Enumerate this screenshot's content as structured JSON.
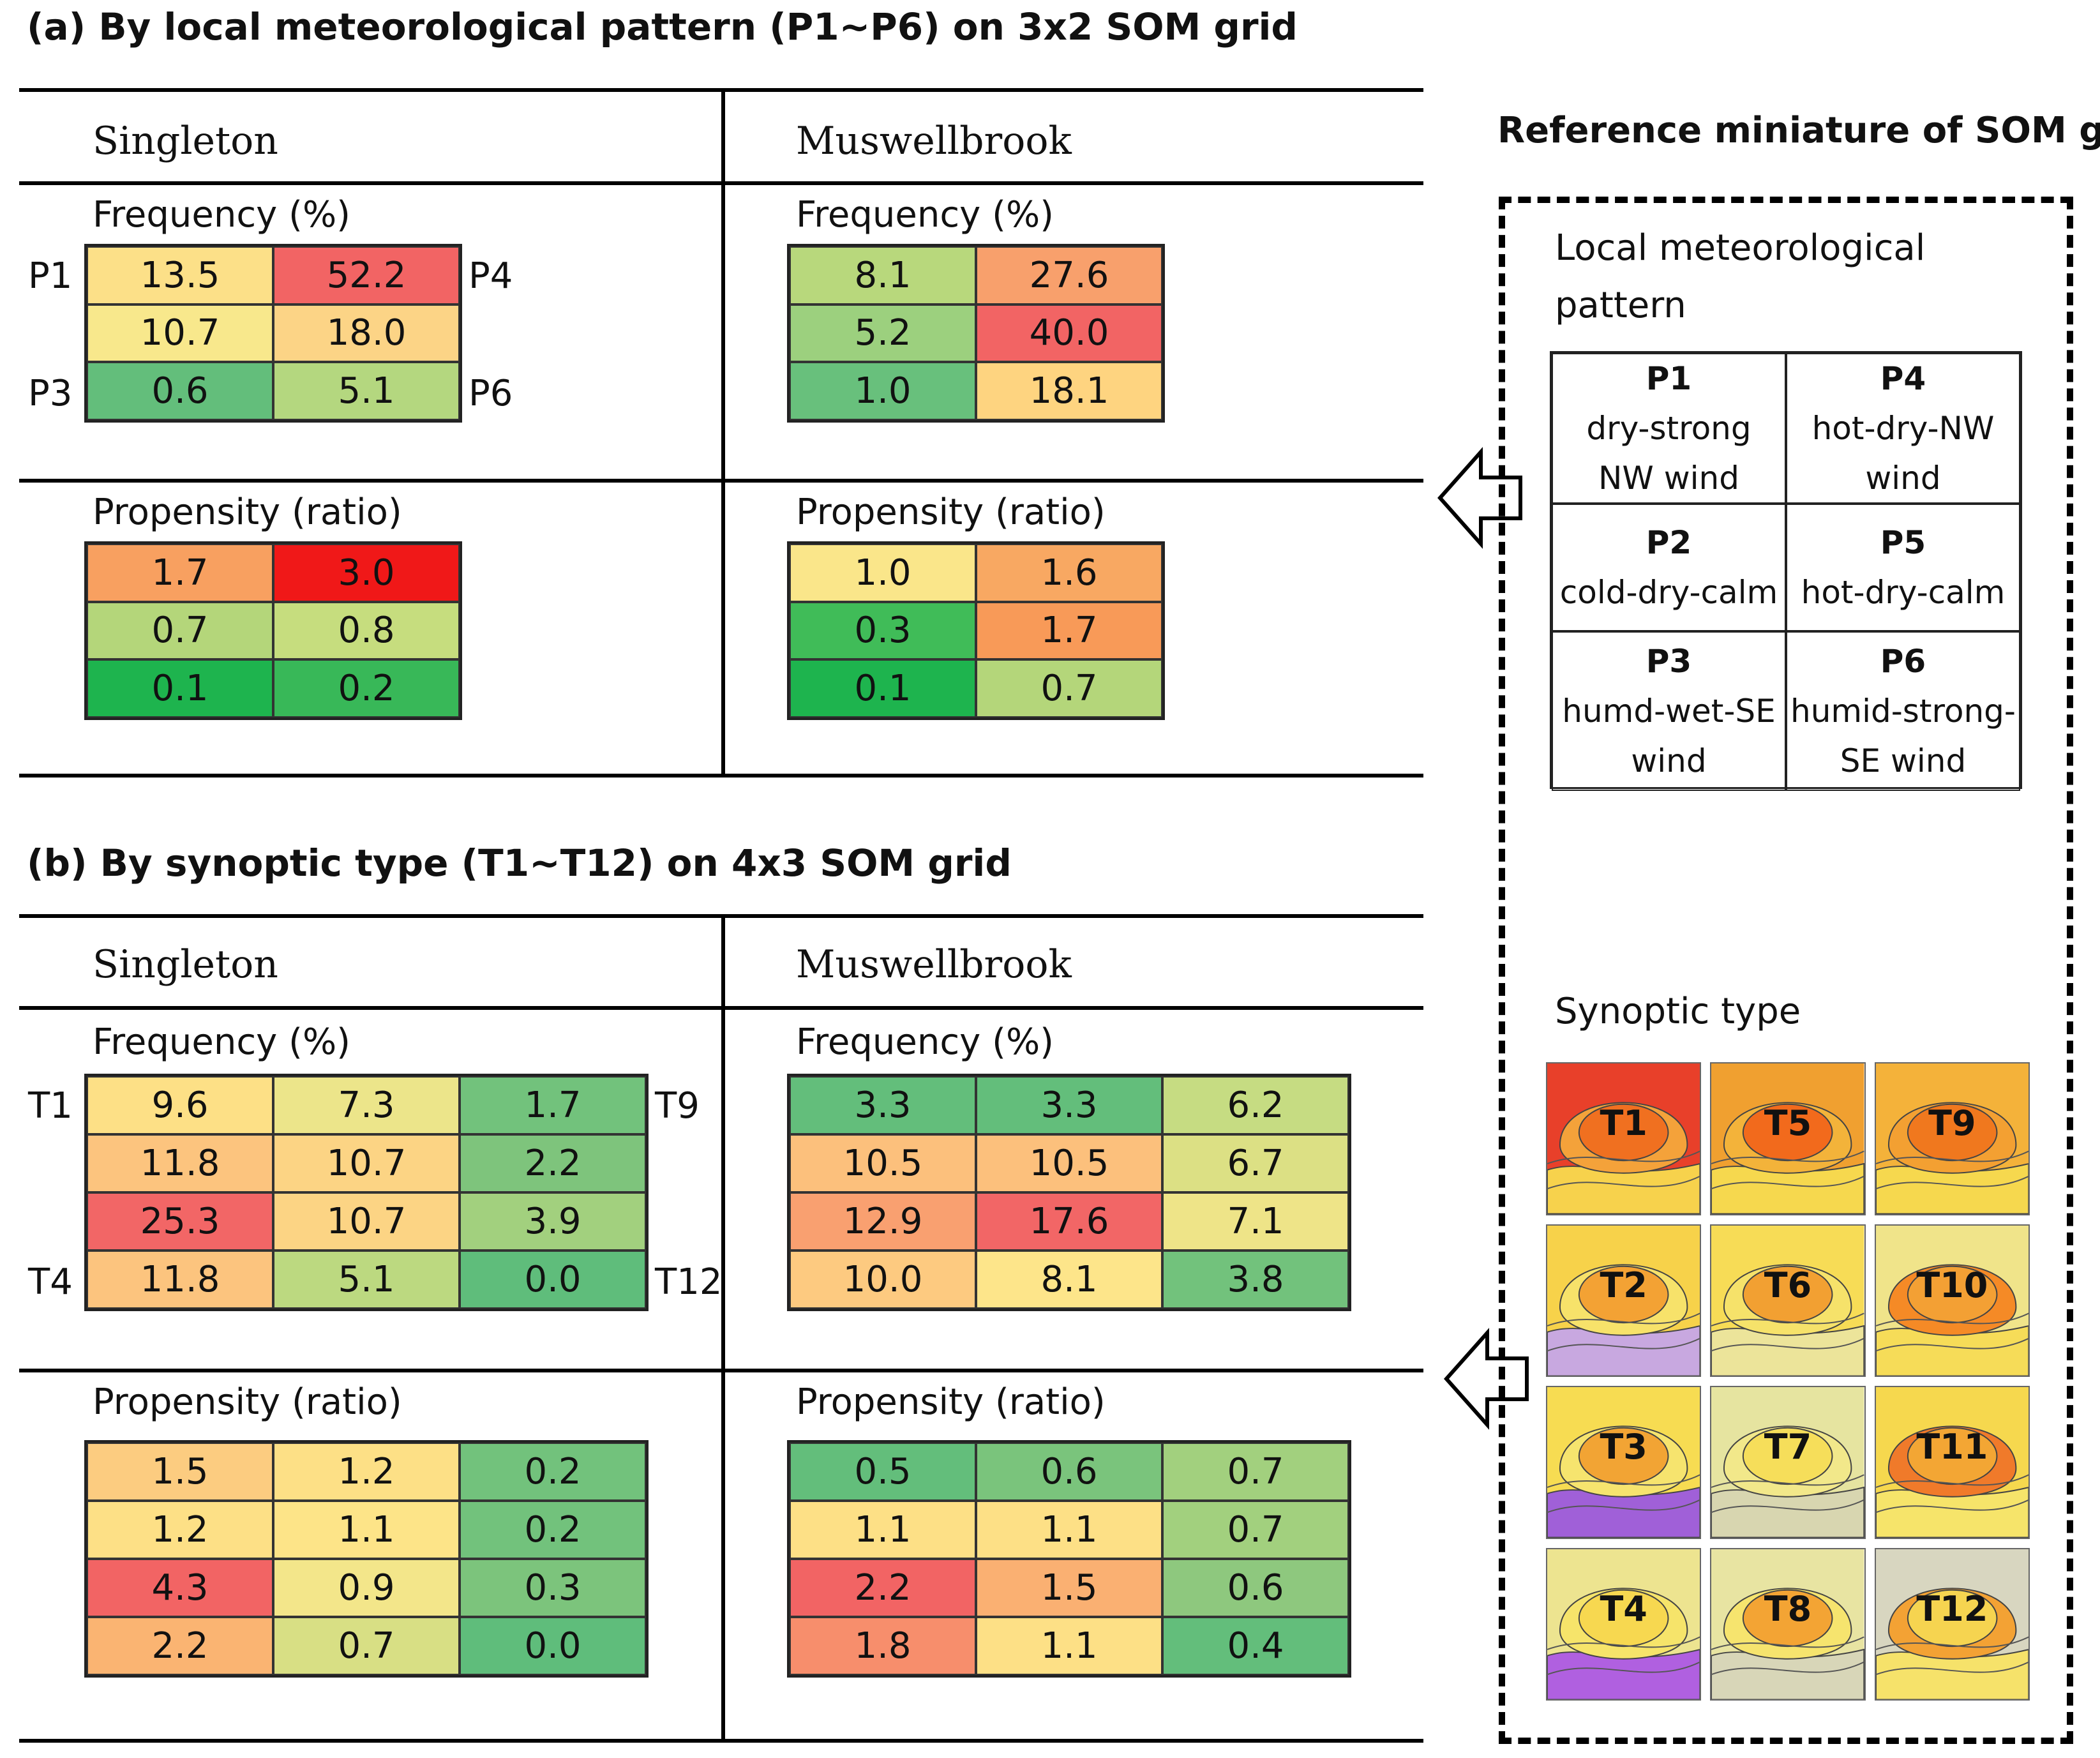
{
  "section_a": {
    "title": "(a) By local meteorological pattern (P1~P6) on 3x2 SOM grid",
    "sites": [
      "Singleton",
      "Muswellbrook"
    ],
    "frequency_label": "Frequency (%)",
    "propensity_label": "Propensity (ratio)",
    "row_labels_left": [
      "P1",
      "",
      "P3"
    ],
    "row_labels_right": [
      "P4",
      "",
      "P6"
    ]
  },
  "section_b": {
    "title": "(b) By synoptic type (T1~T12) on 4x3 SOM grid",
    "sites": [
      "Singleton",
      "Muswellbrook"
    ],
    "frequency_label": "Frequency (%)",
    "propensity_label": "Propensity (ratio)",
    "row_labels_left": [
      "T1",
      "",
      "",
      "T4"
    ],
    "row_labels_right": [
      "T9",
      "",
      "",
      "T12"
    ]
  },
  "reference": {
    "title": "Reference miniature of SOM grid",
    "local_label_line1": "Local meteorological",
    "local_label_line2": "pattern",
    "patterns": [
      {
        "id": "P1",
        "l1": "dry-strong",
        "l2": "NW wind"
      },
      {
        "id": "P4",
        "l1": "hot-dry-NW",
        "l2": "wind"
      },
      {
        "id": "P2",
        "l1": "cold-dry-calm",
        "l2": ""
      },
      {
        "id": "P5",
        "l1": "hot-dry-calm",
        "l2": ""
      },
      {
        "id": "P3",
        "l1": "humd-wet-SE",
        "l2": "wind"
      },
      {
        "id": "P6",
        "l1": "humid-strong-",
        "l2": "SE wind"
      }
    ],
    "synoptic_label": "Synoptic type",
    "synoptic_types": [
      {
        "id": "T1",
        "colors": [
          "#e8402a",
          "#f07020",
          "#f4a23a",
          "#f7d24c"
        ]
      },
      {
        "id": "T5",
        "colors": [
          "#f0a030",
          "#f26a1c",
          "#f3b33a",
          "#f6d84e"
        ]
      },
      {
        "id": "T9",
        "colors": [
          "#f4b23a",
          "#f0781e",
          "#f3a032",
          "#f6d84e"
        ]
      },
      {
        "id": "T2",
        "colors": [
          "#f7d24a",
          "#f3a234",
          "#f7e26a",
          "#c8a8e0"
        ]
      },
      {
        "id": "T6",
        "colors": [
          "#f7dc56",
          "#f2a032",
          "#f6e26a",
          "#ece49a"
        ]
      },
      {
        "id": "T10",
        "colors": [
          "#f0e48a",
          "#f3a034",
          "#f58a26",
          "#f6dc58"
        ]
      },
      {
        "id": "T3",
        "colors": [
          "#f7dc52",
          "#f2a434",
          "#f6e46e",
          "#a060d8"
        ]
      },
      {
        "id": "T7",
        "colors": [
          "#e6e4a0",
          "#f6de5a",
          "#f2e88a",
          "#d8d6b0"
        ]
      },
      {
        "id": "T11",
        "colors": [
          "#f6d84e",
          "#f3a634",
          "#f07a2a",
          "#f6e46a"
        ]
      },
      {
        "id": "T4",
        "colors": [
          "#ede490",
          "#f7d850",
          "#f6e46a",
          "#b060e0"
        ]
      },
      {
        "id": "T8",
        "colors": [
          "#e8e4a2",
          "#f3a434",
          "#f6e46e",
          "#d8d6b8"
        ]
      },
      {
        "id": "T12",
        "colors": [
          "#d8d6c0",
          "#f6d450",
          "#f3a234",
          "#f6e26a"
        ]
      }
    ]
  },
  "chart_data": [
    {
      "type": "heatmap",
      "title": "(a) By local meteorological pattern (P1~P6) on 3x2 SOM grid",
      "site": "Singleton",
      "metric": "Frequency (%)",
      "values": [
        [
          13.5,
          52.2
        ],
        [
          10.7,
          18.0
        ],
        [
          0.6,
          5.1
        ]
      ],
      "colors": [
        [
          "#fce088",
          "#f26464"
        ],
        [
          "#f8e88c",
          "#fcd486"
        ],
        [
          "#63be7b",
          "#b4d77f"
        ]
      ]
    },
    {
      "type": "heatmap",
      "site": "Muswellbrook",
      "metric": "Frequency (%)",
      "values": [
        [
          8.1,
          27.6
        ],
        [
          5.2,
          40.0
        ],
        [
          1.0,
          18.1
        ]
      ],
      "colors": [
        [
          "#b8d87c",
          "#f8a06c"
        ],
        [
          "#9cd07e",
          "#f26464"
        ],
        [
          "#68c07c",
          "#fed480"
        ]
      ]
    },
    {
      "type": "heatmap",
      "site": "Singleton",
      "metric": "Propensity (ratio)",
      "values": [
        [
          1.7,
          3.0
        ],
        [
          0.7,
          0.8
        ],
        [
          0.1,
          0.2
        ]
      ],
      "colors": [
        [
          "#f8a060",
          "#f01818"
        ],
        [
          "#b4d67a",
          "#c6dd7e"
        ],
        [
          "#1eb44e",
          "#38b858"
        ]
      ]
    },
    {
      "type": "heatmap",
      "site": "Muswellbrook",
      "metric": "Propensity (ratio)",
      "values": [
        [
          1.0,
          1.6
        ],
        [
          0.3,
          1.7
        ],
        [
          0.1,
          0.7
        ]
      ],
      "colors": [
        [
          "#fae68a",
          "#f8a862"
        ],
        [
          "#40bc58",
          "#f89a58"
        ],
        [
          "#1eb44e",
          "#b4d67a"
        ]
      ]
    },
    {
      "type": "heatmap",
      "title": "(b) By synoptic type (T1~T12) on 4x3 SOM grid",
      "site": "Singleton",
      "metric": "Frequency (%)",
      "values": [
        [
          9.6,
          7.3,
          1.7
        ],
        [
          11.8,
          10.7,
          2.2
        ],
        [
          25.3,
          10.7,
          3.9
        ],
        [
          11.8,
          5.1,
          0.0
        ]
      ],
      "colors": [
        [
          "#fde086",
          "#ece58a",
          "#72c27c"
        ],
        [
          "#fcc47e",
          "#fcd484",
          "#7ec47c"
        ],
        [
          "#f26666",
          "#fcd484",
          "#a2d07e"
        ],
        [
          "#fcc47e",
          "#bcd980",
          "#5fbd7b"
        ]
      ]
    },
    {
      "type": "heatmap",
      "site": "Muswellbrook",
      "metric": "Frequency (%)",
      "values": [
        [
          3.3,
          3.3,
          6.2
        ],
        [
          10.5,
          10.5,
          6.7
        ],
        [
          12.9,
          17.6,
          7.1
        ],
        [
          10.0,
          8.1,
          3.8
        ]
      ],
      "colors": [
        [
          "#63be7b",
          "#63be7b",
          "#c6dc82"
        ],
        [
          "#fcc07c",
          "#fcc07c",
          "#dce084"
        ],
        [
          "#f9a070",
          "#f26666",
          "#eee488"
        ],
        [
          "#fdca80",
          "#fde58a",
          "#72c27c"
        ]
      ]
    },
    {
      "type": "heatmap",
      "site": "Singleton",
      "metric": "Propensity (ratio)",
      "values": [
        [
          1.5,
          1.2,
          0.2
        ],
        [
          1.2,
          1.1,
          0.2
        ],
        [
          4.3,
          0.9,
          0.3
        ],
        [
          2.2,
          0.7,
          0.0
        ]
      ],
      "colors": [
        [
          "#fccc80",
          "#fde086",
          "#72c27c"
        ],
        [
          "#fde086",
          "#fde488",
          "#72c27c"
        ],
        [
          "#f26464",
          "#f3e68a",
          "#7cc47c"
        ],
        [
          "#fab472",
          "#d8df84",
          "#5fbd7b"
        ]
      ]
    },
    {
      "type": "heatmap",
      "site": "Muswellbrook",
      "metric": "Propensity (ratio)",
      "values": [
        [
          0.5,
          0.6,
          0.7
        ],
        [
          1.1,
          1.1,
          0.7
        ],
        [
          2.2,
          1.5,
          0.6
        ],
        [
          1.8,
          1.1,
          0.4
        ]
      ],
      "colors": [
        [
          "#63be7b",
          "#7ac47c",
          "#a2d07e"
        ],
        [
          "#fde086",
          "#fde086",
          "#a2d07e"
        ],
        [
          "#f26464",
          "#fab072",
          "#8ec87e"
        ],
        [
          "#f78e6c",
          "#fde086",
          "#63be7b"
        ]
      ]
    }
  ]
}
